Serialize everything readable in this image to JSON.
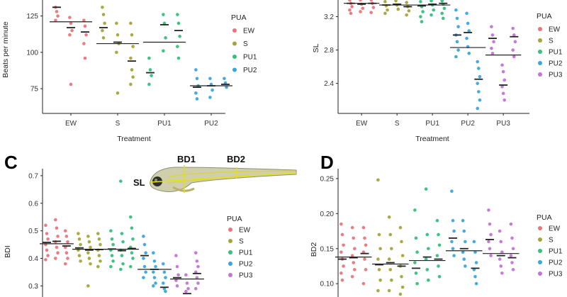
{
  "colors": {
    "EW": "#e8767a",
    "S": "#a3a53a",
    "PU1": "#37bf7c",
    "PU2": "#3aa7dc",
    "PU3": "#c474d6"
  },
  "chart_data": [
    {
      "id": "A",
      "type": "scatter",
      "title": "",
      "xlabel": "Treatment",
      "ylabel": "Beats per minute",
      "yticks": [
        75,
        100,
        125
      ],
      "ylim": [
        58,
        136
      ],
      "categories": [
        "EW",
        "S",
        "PU1",
        "PU2"
      ],
      "legend_title": "PUA",
      "legend": [
        "EW",
        "S",
        "PU1",
        "PU2"
      ],
      "groups": [
        {
          "cat": "EW",
          "overall_mean": 121,
          "reps": [
            {
              "mean": 131,
              "values": [
                131,
                128,
                125,
                122
              ]
            },
            {
              "mean": 117,
              "values": [
                124,
                120,
                115,
                112,
                78
              ]
            },
            {
              "mean": 114,
              "values": [
                122,
                118,
                112,
                106,
                96
              ]
            }
          ]
        },
        {
          "cat": "S",
          "overall_mean": 106,
          "reps": [
            {
              "mean": 117,
              "values": [
                131,
                126,
                120,
                115,
                110
              ]
            },
            {
              "mean": 107,
              "values": [
                120,
                112,
                106,
                100,
                72
              ]
            },
            {
              "mean": 94,
              "values": [
                120,
                112,
                104,
                96,
                88,
                83,
                78
              ]
            }
          ]
        },
        {
          "cat": "PU1",
          "overall_mean": 107,
          "reps": [
            {
              "mean": 86,
              "values": [
                96,
                88,
                84,
                78
              ]
            },
            {
              "mean": 119,
              "values": [
                126,
                120,
                110,
                101
              ]
            },
            {
              "mean": 115,
              "values": [
                126,
                120,
                111,
                104,
                96
              ]
            }
          ]
        },
        {
          "cat": "PU2",
          "overall_mean": 77,
          "reps": [
            {
              "mean": 76,
              "values": [
                88,
                82,
                77,
                72,
                68
              ]
            },
            {
              "mean": 77,
              "values": [
                82,
                78,
                74,
                69
              ]
            },
            {
              "mean": 78,
              "values": [
                82,
                79,
                76
              ]
            }
          ]
        }
      ]
    },
    {
      "id": "B",
      "type": "scatter",
      "title": "",
      "xlabel": "Treatment",
      "ylabel": "SL",
      "yticks": [
        2.4,
        2.8,
        3.2
      ],
      "ylim": [
        2.04,
        3.4
      ],
      "categories": [
        "EW",
        "S",
        "PU1",
        "PU2",
        "PU3"
      ],
      "legend_title": "PUA",
      "legend": [
        "EW",
        "S",
        "PU1",
        "PU2",
        "PU3"
      ],
      "groups": [
        {
          "cat": "EW",
          "overall_mean": 3.36,
          "reps": [
            {
              "mean": 3.36,
              "values": [
                3.4,
                3.36,
                3.32,
                3.28,
                3.24
              ]
            },
            {
              "mean": 3.35,
              "values": [
                3.4,
                3.35,
                3.3,
                3.26
              ]
            },
            {
              "mean": 3.36,
              "values": [
                3.4,
                3.36,
                3.31,
                3.25
              ]
            }
          ]
        },
        {
          "cat": "S",
          "overall_mean": 3.34,
          "reps": [
            {
              "mean": 3.34,
              "values": [
                3.38,
                3.33,
                3.28,
                3.24
              ]
            },
            {
              "mean": 3.35,
              "values": [
                3.39,
                3.34,
                3.29
              ]
            },
            {
              "mean": 3.32,
              "values": [
                3.37,
                3.32,
                3.27,
                3.22
              ]
            }
          ]
        },
        {
          "cat": "PU1",
          "overall_mean": 3.34,
          "reps": [
            {
              "mean": 3.33,
              "values": [
                3.38,
                3.32,
                3.26,
                3.2,
                3.14
              ]
            },
            {
              "mean": 3.35,
              "values": [
                3.39,
                3.34,
                3.28,
                3.22
              ]
            },
            {
              "mean": 3.36,
              "values": [
                3.39,
                3.35,
                3.3,
                3.24,
                3.18
              ]
            }
          ]
        },
        {
          "cat": "PU2",
          "overall_mean": 2.83,
          "reps": [
            {
              "mean": 2.98,
              "values": [
                3.28,
                3.18,
                3.08,
                2.98,
                2.9,
                2.8,
                2.72
              ]
            },
            {
              "mean": 3.01,
              "values": [
                3.24,
                3.12,
                3.03,
                2.94,
                2.84,
                2.76
              ]
            },
            {
              "mean": 2.45,
              "values": [
                2.66,
                2.58,
                2.48,
                2.4,
                2.3,
                2.2,
                2.1
              ]
            }
          ]
        },
        {
          "cat": "PU3",
          "overall_mean": 2.74,
          "reps": [
            {
              "mean": 2.94,
              "values": [
                3.08,
                2.98,
                2.9,
                2.82,
                2.76
              ]
            },
            {
              "mean": 2.38,
              "values": [
                2.62,
                2.54,
                2.44,
                2.36,
                2.28,
                2.2
              ]
            },
            {
              "mean": 2.96,
              "values": [
                3.06,
                2.98,
                2.9,
                2.8,
                2.72
              ]
            }
          ]
        }
      ]
    },
    {
      "id": "C",
      "type": "scatter",
      "title": "",
      "xlabel": "",
      "ylabel": "BDI",
      "yticks": [
        0.3,
        0.4,
        0.5,
        0.6,
        0.7
      ],
      "ylim": [
        0.27,
        0.71
      ],
      "categories": [
        "EW",
        "S",
        "PU1",
        "PU2",
        "PU3"
      ],
      "legend_title": "PUA",
      "legend": [
        "EW",
        "S",
        "PU1",
        "PU2",
        "PU3"
      ],
      "annotations": [
        "SL",
        "BD1",
        "BD2"
      ],
      "groups": [
        {
          "cat": "EW",
          "overall_mean": 0.453,
          "reps": [
            {
              "mean": 0.458,
              "values": [
                0.52,
                0.49,
                0.47,
                0.45,
                0.43,
                0.41,
                0.395
              ]
            },
            {
              "mean": 0.462,
              "values": [
                0.54,
                0.51,
                0.48,
                0.46,
                0.44,
                0.42,
                0.4
              ]
            },
            {
              "mean": 0.445,
              "values": [
                0.5,
                0.48,
                0.46,
                0.44,
                0.42,
                0.4,
                0.38
              ]
            }
          ]
        },
        {
          "cat": "S",
          "overall_mean": 0.433,
          "reps": [
            {
              "mean": 0.438,
              "values": [
                0.49,
                0.47,
                0.45,
                0.43,
                0.41,
                0.39
              ]
            },
            {
              "mean": 0.43,
              "values": [
                0.48,
                0.46,
                0.44,
                0.42,
                0.4,
                0.38,
                0.3
              ]
            },
            {
              "mean": 0.432,
              "values": [
                0.49,
                0.47,
                0.45,
                0.43,
                0.41,
                0.39,
                0.37
              ]
            }
          ]
        },
        {
          "cat": "PU1",
          "overall_mean": 0.433,
          "reps": [
            {
              "mean": 0.434,
              "values": [
                0.5,
                0.47,
                0.45,
                0.43,
                0.41,
                0.39,
                0.37
              ]
            },
            {
              "mean": 0.428,
              "values": [
                0.68,
                0.49,
                0.46,
                0.43,
                0.41,
                0.38,
                0.36
              ]
            },
            {
              "mean": 0.436,
              "values": [
                0.55,
                0.51,
                0.47,
                0.44,
                0.42,
                0.4,
                0.37
              ]
            }
          ]
        },
        {
          "cat": "PU2",
          "overall_mean": 0.36,
          "reps": [
            {
              "mean": 0.41,
              "values": [
                0.48,
                0.45,
                0.42,
                0.4,
                0.37,
                0.35,
                0.33
              ]
            },
            {
              "mean": 0.36,
              "values": [
                0.42,
                0.39,
                0.37,
                0.35,
                0.33,
                0.31,
                0.3
              ]
            },
            {
              "mean": 0.295,
              "values": [
                0.38,
                0.35,
                0.33,
                0.31,
                0.29,
                0.28
              ]
            }
          ]
        },
        {
          "cat": "PU3",
          "overall_mean": 0.325,
          "reps": [
            {
              "mean": 0.33,
              "values": [
                0.41,
                0.37,
                0.34,
                0.32,
                0.3
              ]
            },
            {
              "mean": 0.272,
              "values": [
                0.34,
                0.31,
                0.29,
                0.28
              ]
            },
            {
              "mean": 0.345,
              "values": [
                0.42,
                0.39,
                0.37,
                0.35,
                0.33,
                0.31,
                0.29
              ]
            }
          ]
        }
      ]
    },
    {
      "id": "D",
      "type": "scatter",
      "title": "",
      "xlabel": "",
      "ylabel": "BD2",
      "yticks": [
        0.1,
        0.15,
        0.2,
        0.25
      ],
      "ylim": [
        0.085,
        0.258
      ],
      "categories": [
        "EW",
        "S",
        "PU1",
        "PU2",
        "PU3"
      ],
      "legend_title": "PUA",
      "legend": [
        "EW",
        "S",
        "PU1",
        "PU2",
        "PU3"
      ],
      "groups": [
        {
          "cat": "EW",
          "overall_mean": 0.138,
          "reps": [
            {
              "mean": 0.135,
              "values": [
                0.185,
                0.17,
                0.155,
                0.145,
                0.135,
                0.125,
                0.115,
                0.105
              ]
            },
            {
              "mean": 0.137,
              "values": [
                0.18,
                0.165,
                0.15,
                0.14,
                0.13,
                0.12,
                0.11
              ]
            },
            {
              "mean": 0.143,
              "values": [
                0.18,
                0.165,
                0.155,
                0.145,
                0.135,
                0.12,
                0.1
              ]
            }
          ]
        },
        {
          "cat": "S",
          "overall_mean": 0.128,
          "reps": [
            {
              "mean": 0.127,
              "values": [
                0.248,
                0.17,
                0.15,
                0.135,
                0.12,
                0.105,
                0.09
              ]
            },
            {
              "mean": 0.13,
              "values": [
                0.195,
                0.17,
                0.15,
                0.135,
                0.12,
                0.105,
                0.09
              ]
            },
            {
              "mean": 0.125,
              "values": [
                0.18,
                0.16,
                0.14,
                0.125,
                0.11,
                0.095,
                0.085
              ]
            }
          ]
        },
        {
          "cat": "PU1",
          "overall_mean": 0.133,
          "reps": [
            {
              "mean": 0.122,
              "values": [
                0.205,
                0.165,
                0.145,
                0.13,
                0.115,
                0.1
              ]
            },
            {
              "mean": 0.138,
              "values": [
                0.235,
                0.17,
                0.15,
                0.135,
                0.12,
                0.105
              ]
            },
            {
              "mean": 0.135,
              "values": [
                0.19,
                0.17,
                0.155,
                0.14,
                0.125,
                0.11
              ]
            }
          ]
        },
        {
          "cat": "PU2",
          "overall_mean": 0.147,
          "reps": [
            {
              "mean": 0.165,
              "values": [
                0.232,
                0.19,
                0.175,
                0.16,
                0.15,
                0.14
              ]
            },
            {
              "mean": 0.15,
              "values": [
                0.19,
                0.175,
                0.16,
                0.145,
                0.135,
                0.125
              ]
            },
            {
              "mean": 0.122,
              "values": [
                0.16,
                0.145,
                0.13,
                0.12,
                0.11,
                0.1
              ]
            }
          ]
        },
        {
          "cat": "PU3",
          "overall_mean": 0.143,
          "reps": [
            {
              "mean": 0.163,
              "values": [
                0.205,
                0.185,
                0.17,
                0.16,
                0.15,
                0.14
              ]
            },
            {
              "mean": 0.14,
              "values": [
                0.175,
                0.16,
                0.145,
                0.135,
                0.125,
                0.115
              ]
            },
            {
              "mean": 0.137,
              "values": [
                0.185,
                0.165,
                0.15,
                0.14,
                0.13,
                0.12
              ]
            }
          ]
        }
      ]
    }
  ]
}
